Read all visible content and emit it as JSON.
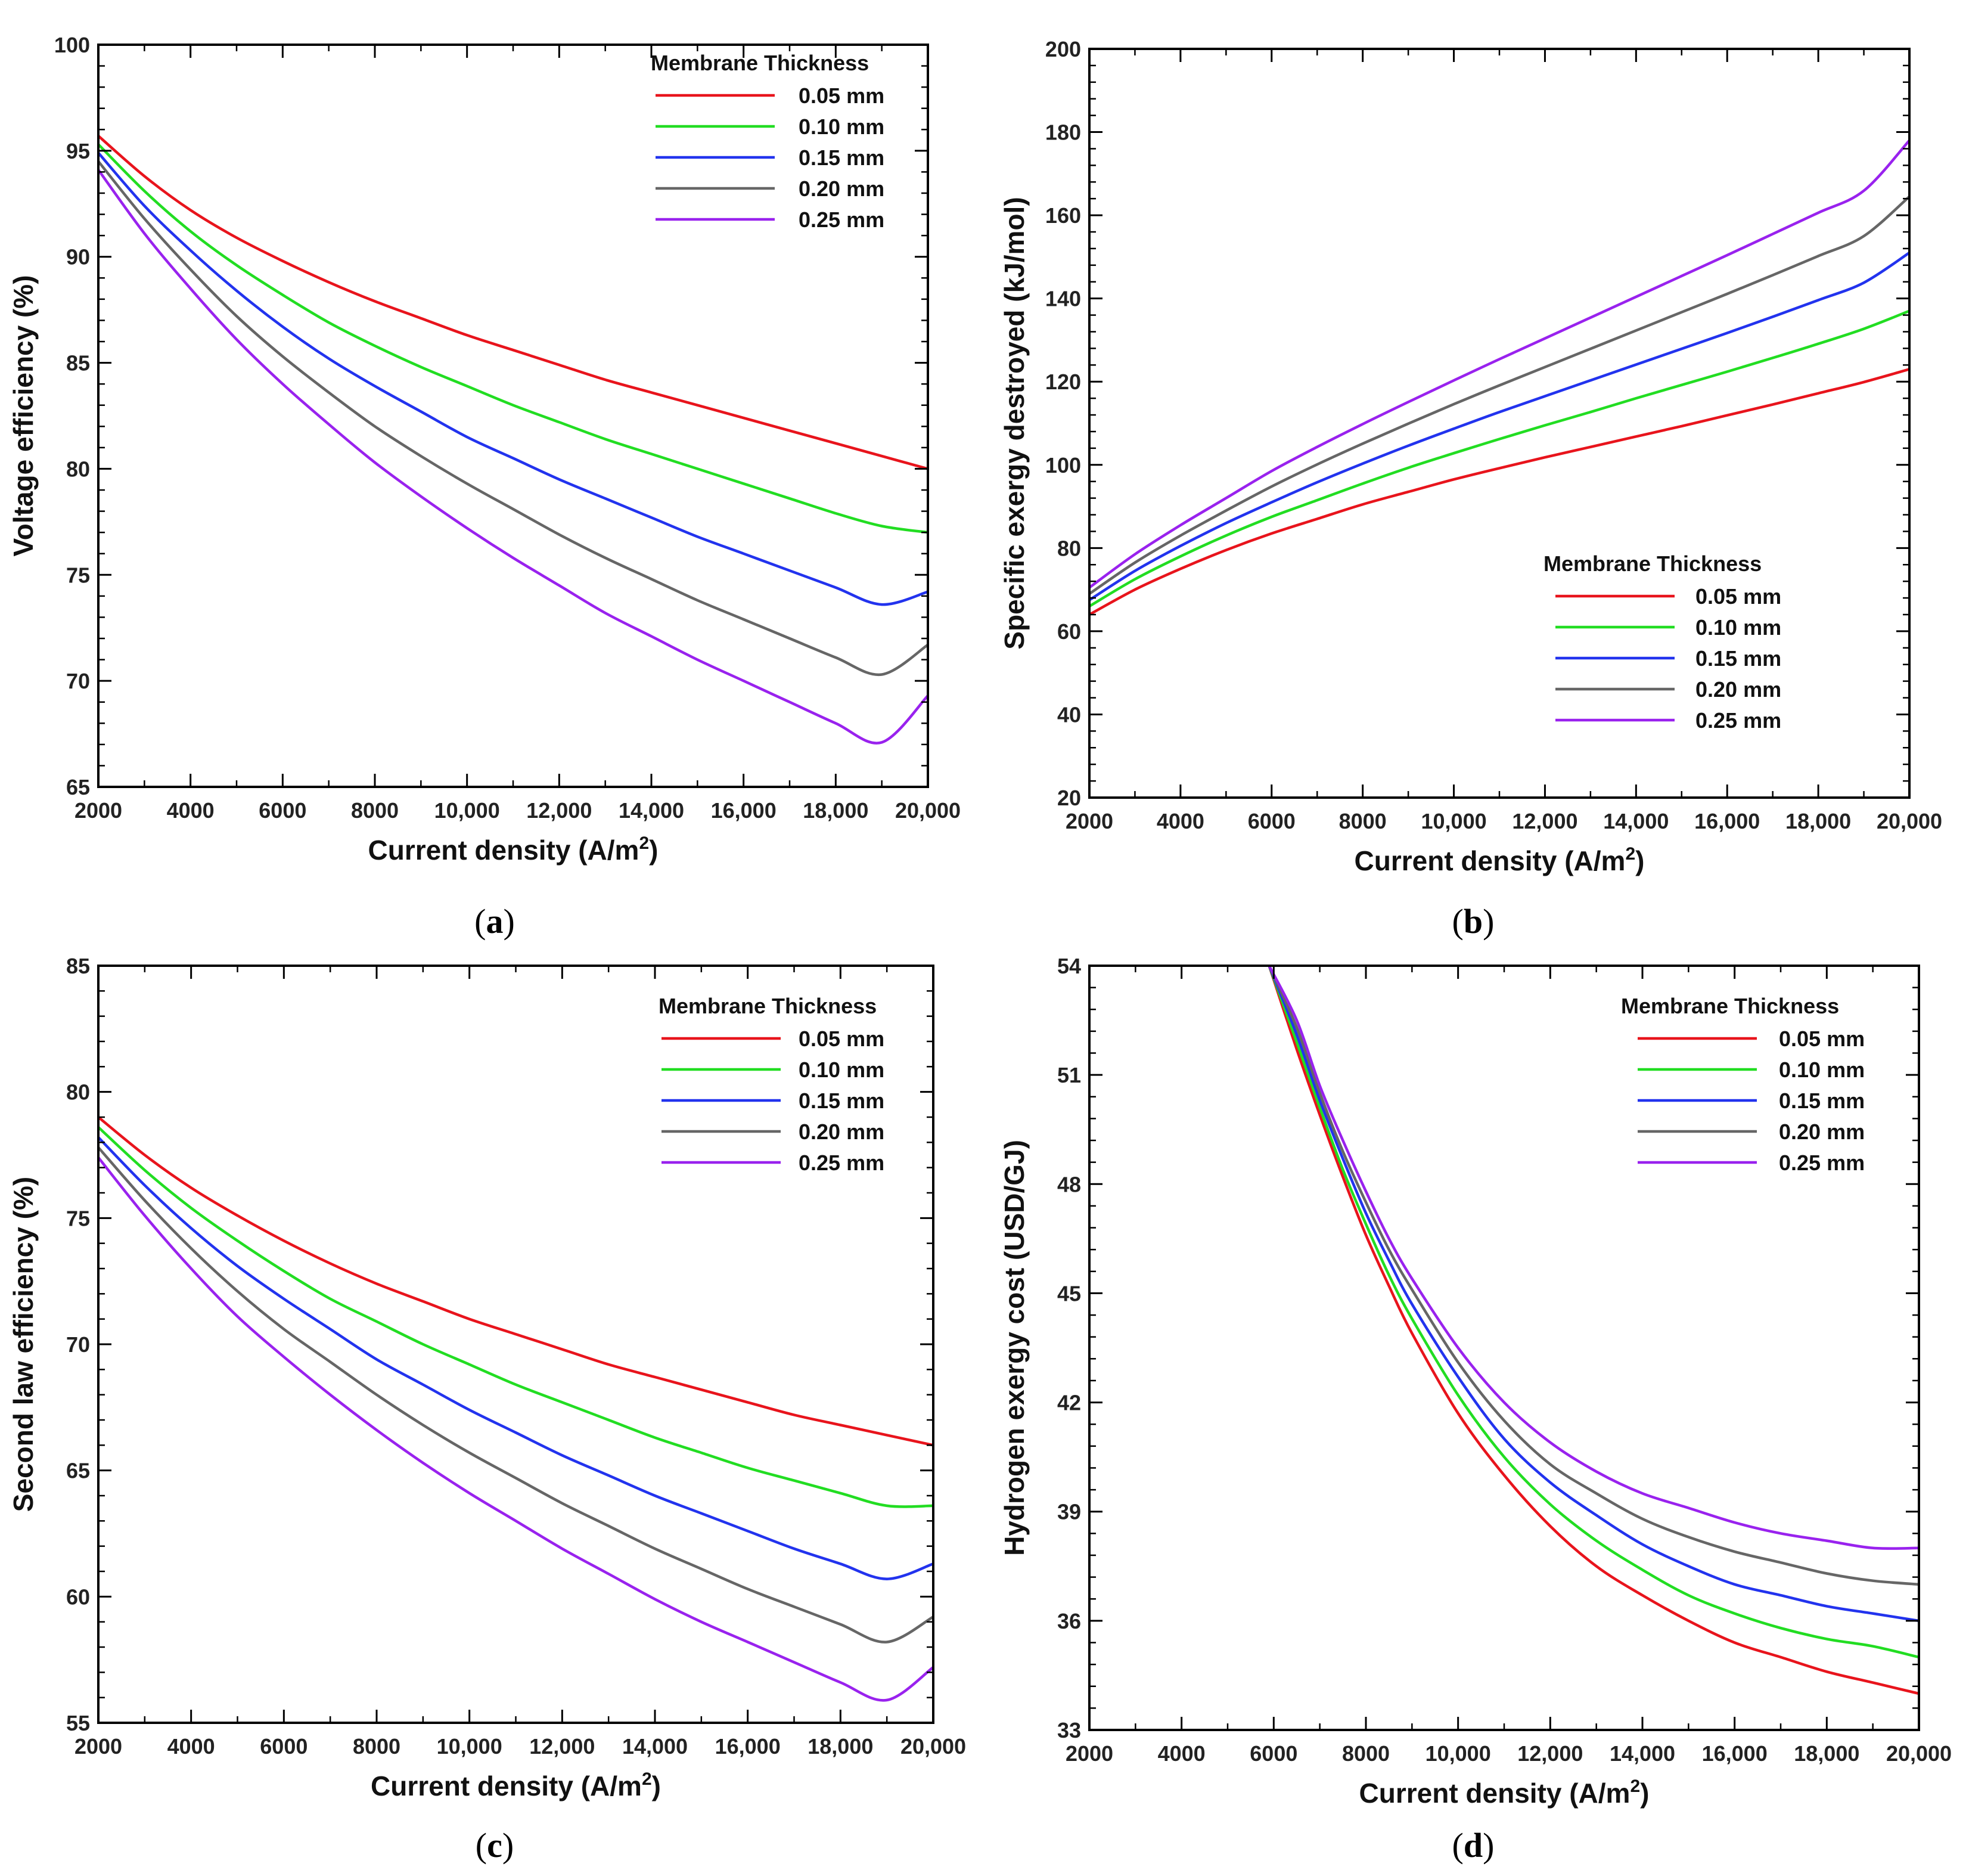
{
  "chart_data": [
    {
      "type": "line",
      "panel": "a",
      "xlabel": "Current density (A/m",
      "xlabel_sup": "2",
      "xlabel_end": ")",
      "ylabel": "Voltage efficiency (%)",
      "xlim": [
        2000,
        20000
      ],
      "ylim": [
        65,
        100
      ],
      "xticks": [
        2000,
        4000,
        6000,
        8000,
        10000,
        12000,
        14000,
        16000,
        18000,
        20000
      ],
      "xtick_labels": [
        "2000",
        "4000",
        "6000",
        "8000",
        "10,000",
        "12,000",
        "14,000",
        "16,000",
        "18,000",
        "20,000"
      ],
      "yticks": [
        65,
        70,
        75,
        80,
        85,
        90,
        95,
        100
      ],
      "ytick_labels": [
        "65",
        "70",
        "75",
        "80",
        "85",
        "90",
        "95",
        "100"
      ],
      "legend_title": "Membrane Thickness",
      "legend_position": "top-right",
      "x": [
        2000,
        3000,
        4000,
        5000,
        6000,
        7000,
        8000,
        9000,
        10000,
        11000,
        12000,
        13000,
        14000,
        15000,
        16000,
        17000,
        18000,
        19000,
        20000
      ],
      "series": [
        {
          "name": "0.05 mm",
          "color": "#e8141c",
          "values": [
            95.7,
            93.8,
            92.2,
            90.9,
            89.8,
            88.8,
            87.9,
            87.1,
            86.3,
            85.6,
            84.9,
            84.2,
            83.6,
            83.0,
            82.4,
            81.8,
            81.2,
            80.6,
            80.0
          ]
        },
        {
          "name": "0.10 mm",
          "color": "#22dd22",
          "values": [
            95.3,
            93.1,
            91.2,
            89.6,
            88.2,
            86.9,
            85.8,
            84.8,
            83.9,
            83.0,
            82.2,
            81.4,
            80.7,
            80.0,
            79.3,
            78.6,
            77.9,
            77.3,
            77.0
          ]
        },
        {
          "name": "0.15 mm",
          "color": "#2233ee",
          "values": [
            94.9,
            92.4,
            90.3,
            88.4,
            86.7,
            85.2,
            83.9,
            82.7,
            81.5,
            80.5,
            79.5,
            78.6,
            77.7,
            76.8,
            76.0,
            75.2,
            74.4,
            73.6,
            74.2
          ]
        },
        {
          "name": "0.20 mm",
          "color": "#666666",
          "values": [
            94.5,
            91.8,
            89.4,
            87.2,
            85.3,
            83.6,
            82.0,
            80.6,
            79.3,
            78.1,
            76.9,
            75.8,
            74.8,
            73.8,
            72.9,
            72.0,
            71.1,
            70.3,
            71.7
          ]
        },
        {
          "name": "0.25 mm",
          "color": "#9922ee",
          "values": [
            94.1,
            91.1,
            88.5,
            86.1,
            84.0,
            82.1,
            80.3,
            78.7,
            77.2,
            75.8,
            74.5,
            73.2,
            72.1,
            71.0,
            70.0,
            69.0,
            68.0,
            67.1,
            69.3
          ]
        }
      ]
    },
    {
      "type": "line",
      "panel": "b",
      "xlabel": "Current density (A/m",
      "xlabel_sup": "2",
      "xlabel_end": ")",
      "ylabel": "Specific exergy destroyed (kJ/mol)",
      "xlim": [
        2000,
        20000
      ],
      "ylim": [
        20,
        200
      ],
      "xticks": [
        2000,
        4000,
        6000,
        8000,
        10000,
        12000,
        14000,
        16000,
        18000,
        20000
      ],
      "xtick_labels": [
        "2000",
        "4000",
        "6000",
        "8000",
        "10,000",
        "12,000",
        "14,000",
        "16,000",
        "18,000",
        "20,000"
      ],
      "yticks": [
        20,
        40,
        60,
        80,
        100,
        120,
        140,
        160,
        180,
        200
      ],
      "ytick_labels": [
        "20",
        "40",
        "60",
        "80",
        "100",
        "120",
        "140",
        "160",
        "180",
        "200"
      ],
      "legend_title": "Membrane Thickness",
      "legend_position": "bottom-right",
      "x": [
        2000,
        3000,
        4000,
        5000,
        6000,
        7000,
        8000,
        9000,
        10000,
        11000,
        12000,
        13000,
        14000,
        15000,
        16000,
        17000,
        18000,
        19000,
        20000
      ],
      "series": [
        {
          "name": "0.05 mm",
          "color": "#e8141c",
          "values": [
            64,
            70,
            75,
            79.5,
            83.5,
            87,
            90.5,
            93.5,
            96.5,
            99.2,
            101.8,
            104.3,
            106.8,
            109.3,
            111.9,
            114.5,
            117.2,
            119.9,
            123
          ]
        },
        {
          "name": "0.10 mm",
          "color": "#22dd22",
          "values": [
            66,
            72.5,
            78,
            83,
            87.5,
            91.5,
            95.5,
            99.3,
            102.8,
            106.2,
            109.5,
            112.7,
            116,
            119.2,
            122.4,
            125.7,
            129.1,
            132.7,
            137
          ]
        },
        {
          "name": "0.15 mm",
          "color": "#2233ee",
          "values": [
            67.5,
            74.5,
            80.5,
            86,
            91,
            95.8,
            100.3,
            104.6,
            108.7,
            112.7,
            116.5,
            120.3,
            124.1,
            127.9,
            131.7,
            135.6,
            139.6,
            143.8,
            151
          ]
        },
        {
          "name": "0.20 mm",
          "color": "#666666",
          "values": [
            69,
            76.5,
            83,
            89,
            94.8,
            100.1,
            105.1,
            109.9,
            114.6,
            119.1,
            123.5,
            127.9,
            132.3,
            136.7,
            141.1,
            145.6,
            150.2,
            155,
            164.5
          ]
        },
        {
          "name": "0.25 mm",
          "color": "#9922ee",
          "values": [
            70.5,
            78.5,
            85.5,
            92,
            98.5,
            104.3,
            109.8,
            115.1,
            120.3,
            125.4,
            130.4,
            135.4,
            140.4,
            145.4,
            150.4,
            155.5,
            160.6,
            165.9,
            178
          ]
        }
      ]
    },
    {
      "type": "line",
      "panel": "c",
      "xlabel": "Current density (A/m",
      "xlabel_sup": "2",
      "xlabel_end": ")",
      "ylabel": "Second law efficiency (%)",
      "xlim": [
        2000,
        20000
      ],
      "ylim": [
        55,
        85
      ],
      "xticks": [
        2000,
        4000,
        6000,
        8000,
        10000,
        12000,
        14000,
        16000,
        18000,
        20000
      ],
      "xtick_labels": [
        "2000",
        "4000",
        "6000",
        "8000",
        "10,000",
        "12,000",
        "14,000",
        "16,000",
        "18,000",
        "20,000"
      ],
      "yticks": [
        55,
        60,
        65,
        70,
        75,
        80,
        85
      ],
      "ytick_labels": [
        "55",
        "60",
        "65",
        "70",
        "75",
        "80",
        "85"
      ],
      "legend_title": "Membrane Thickness",
      "legend_position": "top-right",
      "x": [
        2000,
        3000,
        4000,
        5000,
        6000,
        7000,
        8000,
        9000,
        10000,
        11000,
        12000,
        13000,
        14000,
        15000,
        16000,
        17000,
        18000,
        19000,
        20000
      ],
      "series": [
        {
          "name": "0.05 mm",
          "color": "#e8141c",
          "values": [
            79.0,
            77.5,
            76.2,
            75.1,
            74.1,
            73.2,
            72.4,
            71.7,
            71.0,
            70.4,
            69.8,
            69.2,
            68.7,
            68.2,
            67.7,
            67.2,
            66.8,
            66.4,
            66.0
          ]
        },
        {
          "name": "0.10 mm",
          "color": "#22dd22",
          "values": [
            78.6,
            76.9,
            75.4,
            74.1,
            72.9,
            71.8,
            70.9,
            70.0,
            69.2,
            68.4,
            67.7,
            67.0,
            66.3,
            65.7,
            65.1,
            64.6,
            64.1,
            63.6,
            63.6
          ]
        },
        {
          "name": "0.15 mm",
          "color": "#2233ee",
          "values": [
            78.2,
            76.3,
            74.6,
            73.1,
            71.8,
            70.6,
            69.4,
            68.4,
            67.4,
            66.5,
            65.6,
            64.8,
            64.0,
            63.3,
            62.6,
            61.9,
            61.3,
            60.7,
            61.3
          ]
        },
        {
          "name": "0.20 mm",
          "color": "#666666",
          "values": [
            77.8,
            75.7,
            73.8,
            72.1,
            70.6,
            69.3,
            68.0,
            66.8,
            65.7,
            64.7,
            63.7,
            62.8,
            61.9,
            61.1,
            60.3,
            59.6,
            58.9,
            58.2,
            59.2
          ]
        },
        {
          "name": "0.25 mm",
          "color": "#9922ee",
          "values": [
            77.4,
            75.1,
            73.0,
            71.1,
            69.5,
            68.0,
            66.6,
            65.3,
            64.1,
            63.0,
            61.9,
            60.9,
            59.9,
            59.0,
            58.2,
            57.4,
            56.6,
            55.9,
            57.2
          ]
        }
      ]
    },
    {
      "type": "line",
      "panel": "d",
      "xlabel": "Current density (A/m",
      "xlabel_sup": "2",
      "xlabel_end": ")",
      "ylabel": "Hydrogen exergy cost (USD/GJ)",
      "xlim": [
        2000,
        20000
      ],
      "ylim": [
        33,
        54
      ],
      "xticks": [
        2000,
        4000,
        6000,
        8000,
        10000,
        12000,
        14000,
        16000,
        18000,
        20000
      ],
      "xtick_labels": [
        "2000",
        "4000",
        "6000",
        "8000",
        "10,000",
        "12,000",
        "14,000",
        "16,000",
        "18,000",
        "20,000"
      ],
      "yticks": [
        33,
        36,
        39,
        42,
        45,
        48,
        51,
        54
      ],
      "ytick_labels": [
        "33",
        "36",
        "39",
        "42",
        "45",
        "48",
        "51",
        "54"
      ],
      "legend_title": "Membrane Thickness",
      "legend_position": "top-right",
      "x": [
        5900,
        6500,
        7000,
        7500,
        8000,
        8500,
        9000,
        10000,
        11000,
        12000,
        13000,
        14000,
        15000,
        16000,
        17000,
        18000,
        19000,
        20000
      ],
      "series": [
        {
          "name": "0.05 mm",
          "color": "#e8141c",
          "values": [
            54.0,
            51.7,
            49.9,
            48.2,
            46.6,
            45.2,
            43.9,
            41.7,
            40.0,
            38.6,
            37.5,
            36.7,
            36.0,
            35.4,
            35.0,
            34.6,
            34.3,
            34.0
          ]
        },
        {
          "name": "0.10 mm",
          "color": "#22dd22",
          "values": [
            54.0,
            51.9,
            50.1,
            48.4,
            46.9,
            45.5,
            44.3,
            42.2,
            40.5,
            39.2,
            38.2,
            37.4,
            36.7,
            36.2,
            35.8,
            35.5,
            35.3,
            35.0
          ]
        },
        {
          "name": "0.15 mm",
          "color": "#2233ee",
          "values": [
            54.0,
            52.1,
            50.3,
            48.7,
            47.2,
            45.9,
            44.7,
            42.7,
            41.0,
            39.8,
            38.9,
            38.1,
            37.5,
            37.0,
            36.7,
            36.4,
            36.2,
            36.0
          ]
        },
        {
          "name": "0.20 mm",
          "color": "#666666",
          "values": [
            54.0,
            52.3,
            50.5,
            48.9,
            47.5,
            46.2,
            45.1,
            43.1,
            41.5,
            40.3,
            39.5,
            38.8,
            38.3,
            37.9,
            37.6,
            37.3,
            37.1,
            37.0
          ]
        },
        {
          "name": "0.25 mm",
          "color": "#9922ee",
          "values": [
            54.0,
            52.5,
            50.7,
            49.2,
            47.8,
            46.5,
            45.4,
            43.5,
            42.0,
            40.9,
            40.1,
            39.5,
            39.1,
            38.7,
            38.4,
            38.2,
            38.0,
            38.0
          ]
        }
      ]
    }
  ],
  "panel_labels": [
    "(a)",
    "(b)",
    "(c)",
    "(d)"
  ]
}
